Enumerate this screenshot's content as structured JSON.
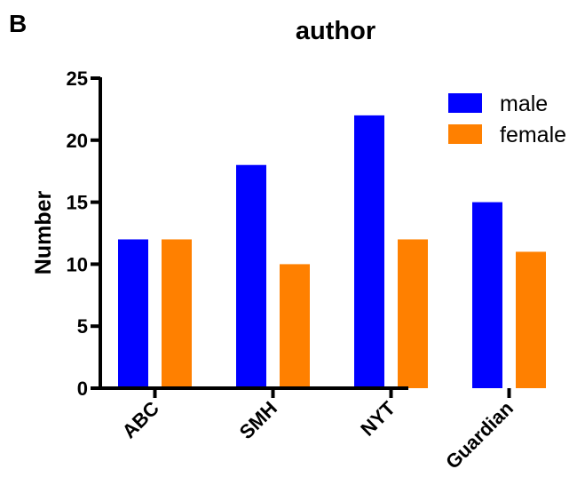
{
  "panel_label": "B",
  "chart_data": {
    "type": "bar",
    "title": "author",
    "xlabel": "",
    "ylabel": "Number",
    "categories": [
      "ABC",
      "SMH",
      "NYT",
      "Guardian"
    ],
    "series": [
      {
        "name": "male",
        "values": [
          12,
          18,
          22,
          15
        ],
        "color": "#0000ff"
      },
      {
        "name": "female",
        "values": [
          12,
          10,
          12,
          11
        ],
        "color": "#ff8000"
      }
    ],
    "ylim": [
      0,
      25
    ],
    "yticks": [
      "0",
      "5",
      "10",
      "15",
      "20",
      "25"
    ],
    "grid": false,
    "legend_position": "top-right"
  }
}
